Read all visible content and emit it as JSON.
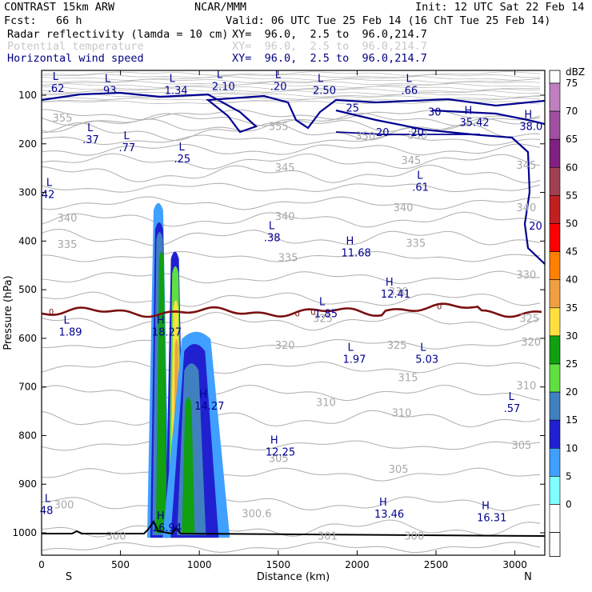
{
  "header": {
    "title_left": "CONTRAST 15km ARW",
    "title_center": "NCAR/MMM",
    "init": "Init: 12 UTC Sat 22 Feb 14",
    "fcst": "Fcst:   66 h",
    "valid": "Valid: 06 UTC Tue 25 Feb 14 (16 ChT Tue 25 Feb 14)",
    "fields": [
      {
        "label": "Radar reflectivity (lamda = 10 cm)",
        "xy": "XY=  96.0,  2.5 to  96.0,214.7",
        "color": "#000000"
      },
      {
        "label": "Potential temperature",
        "xy": "XY=  96.0,  2.5 to  96.0,214.7",
        "color": "#c8c8c8"
      },
      {
        "label": "Horizontal wind speed",
        "xy": "XY=  96.0,  2.5 to  96.0,214.7",
        "color": "#000080"
      }
    ]
  },
  "chart_data": {
    "type": "cross-section",
    "xlabel": "Distance (km)",
    "ylabel": "Pressure (hPa)",
    "x_ticks": [
      "0",
      "500",
      "1000",
      "1500",
      "2000",
      "2500",
      "3000"
    ],
    "y_ticks": [
      "100",
      "200",
      "300",
      "400",
      "500",
      "600",
      "700",
      "800",
      "900",
      "1000"
    ],
    "x_direction_labels": {
      "left": "S",
      "right": "N"
    },
    "xlim": [
      0,
      3200
    ],
    "ylim": [
      1050,
      50
    ],
    "colorbar": {
      "unit": "dBZ",
      "levels": [
        "75",
        "70",
        "65",
        "60",
        "55",
        "50",
        "45",
        "40",
        "35",
        "30",
        "25",
        "20",
        "15",
        "10",
        "5",
        "0"
      ],
      "colors": [
        "#c080c0",
        "#a050a0",
        "#802080",
        "#a04050",
        "#c02020",
        "#ff0000",
        "#ff8000",
        "#f0a040",
        "#ffe040",
        "#10a010",
        "#60e040",
        "#4080c0",
        "#2020d0",
        "#40a0ff",
        "#80ffff",
        "#ffffff"
      ]
    },
    "theta_labels": [
      {
        "text": "355",
        "x": 120,
        "p": 148
      },
      {
        "text": "355",
        "x": 1490,
        "p": 165
      },
      {
        "text": "350",
        "x": 2040,
        "p": 185
      },
      {
        "text": "350",
        "x": 2370,
        "p": 183
      },
      {
        "text": "345",
        "x": 1530,
        "p": 250
      },
      {
        "text": "345",
        "x": 2330,
        "p": 235
      },
      {
        "text": "345",
        "x": 3060,
        "p": 245
      },
      {
        "text": "340",
        "x": 150,
        "p": 353
      },
      {
        "text": "340",
        "x": 1530,
        "p": 350
      },
      {
        "text": "340",
        "x": 2280,
        "p": 332
      },
      {
        "text": "340",
        "x": 3060,
        "p": 332
      },
      {
        "text": "335",
        "x": 150,
        "p": 408
      },
      {
        "text": "335",
        "x": 1550,
        "p": 435
      },
      {
        "text": "335",
        "x": 2360,
        "p": 405
      },
      {
        "text": "330",
        "x": 3060,
        "p": 470
      },
      {
        "text": "330",
        "x": 2250,
        "p": 505
      },
      {
        "text": "325",
        "x": 1770,
        "p": 560
      },
      {
        "text": "325",
        "x": 3080,
        "p": 560
      },
      {
        "text": "320",
        "x": 1530,
        "p": 615
      },
      {
        "text": "320",
        "x": 3090,
        "p": 608
      },
      {
        "text": "325",
        "x": 2240,
        "p": 615
      },
      {
        "text": "315",
        "x": 2310,
        "p": 682
      },
      {
        "text": "310",
        "x": 1790,
        "p": 733
      },
      {
        "text": "310",
        "x": 3060,
        "p": 698
      },
      {
        "text": "310",
        "x": 2270,
        "p": 754
      },
      {
        "text": "305",
        "x": 1490,
        "p": 848
      },
      {
        "text": "305",
        "x": 2250,
        "p": 870
      },
      {
        "text": "305",
        "x": 3030,
        "p": 821
      },
      {
        "text": "300",
        "x": 130,
        "p": 943
      },
      {
        "text": "300.6",
        "x": 1320,
        "p": 961
      },
      {
        "text": "300",
        "x": 460,
        "p": 1007
      },
      {
        "text": "301",
        "x": 1800,
        "p": 1007
      },
      {
        "text": "300",
        "x": 2350,
        "p": 1007
      }
    ],
    "wind_labels": [
      {
        "text": "25",
        "x": 1970,
        "p": 127
      },
      {
        "text": "30",
        "x": 2490,
        "p": 135
      },
      {
        "text": "20",
        "x": 2160,
        "p": 177
      },
      {
        "text": "20",
        "x": 2380,
        "p": 177
      },
      {
        "text": "20",
        "x": 3130,
        "p": 370
      }
    ],
    "freezing_level_labels": [
      {
        "text": "0",
        "x": 60,
        "p": 546
      },
      {
        "text": "0",
        "x": 1620,
        "p": 550
      },
      {
        "text": "0",
        "x": 1720,
        "p": 547
      },
      {
        "text": "0",
        "x": 2520,
        "p": 535
      }
    ],
    "extrema": [
      {
        "type": "L",
        "value": ".62",
        "x": 90,
        "p": 72
      },
      {
        "type": "L",
        "value": ".93",
        "x": 420,
        "p": 76
      },
      {
        "type": "L",
        "value": "1.34",
        "x": 830,
        "p": 76
      },
      {
        "type": "L",
        "value": "2.10",
        "x": 1130,
        "p": 68
      },
      {
        "type": "L",
        "value": ".20",
        "x": 1500,
        "p": 68
      },
      {
        "type": "L",
        "value": "2.50",
        "x": 1770,
        "p": 76
      },
      {
        "type": "L",
        "value": ".66",
        "x": 2330,
        "p": 76
      },
      {
        "type": "H",
        "value": "35.42",
        "x": 2700,
        "p": 142
      },
      {
        "type": "H",
        "value": "38.0",
        "x": 3080,
        "p": 150
      },
      {
        "type": "L",
        "value": ".37",
        "x": 310,
        "p": 177
      },
      {
        "type": "L",
        "value": ".77",
        "x": 540,
        "p": 194
      },
      {
        "type": "L",
        "value": ".25",
        "x": 890,
        "p": 217
      },
      {
        "type": "L",
        "value": ".61",
        "x": 2400,
        "p": 275
      },
      {
        "type": "L",
        "value": "42",
        "x": 50,
        "p": 290
      },
      {
        "type": "L",
        "value": ".38",
        "x": 1460,
        "p": 379
      },
      {
        "type": "H",
        "value": "11.68",
        "x": 1950,
        "p": 410
      },
      {
        "type": "H",
        "value": "12.41",
        "x": 2200,
        "p": 495
      },
      {
        "type": "L",
        "value": "1.85",
        "x": 1780,
        "p": 535
      },
      {
        "type": "L",
        "value": "1.89",
        "x": 160,
        "p": 573
      },
      {
        "type": "H",
        "value": "18.27",
        "x": 750,
        "p": 573
      },
      {
        "type": "L",
        "value": "1.97",
        "x": 1960,
        "p": 629
      },
      {
        "type": "L",
        "value": "5.03",
        "x": 2420,
        "p": 629
      },
      {
        "type": "H",
        "value": "14.27",
        "x": 1020,
        "p": 725
      },
      {
        "type": "L",
        "value": ".57",
        "x": 2980,
        "p": 730
      },
      {
        "type": "H",
        "value": "12.25",
        "x": 1470,
        "p": 820
      },
      {
        "type": "H",
        "value": "13.46",
        "x": 2160,
        "p": 947
      },
      {
        "type": "H",
        "value": "16.31",
        "x": 2810,
        "p": 955
      },
      {
        "type": "H",
        "value": "16.94",
        "x": 750,
        "p": 975
      },
      {
        "type": "L",
        "value": "48",
        "x": 40,
        "p": 940
      }
    ]
  }
}
